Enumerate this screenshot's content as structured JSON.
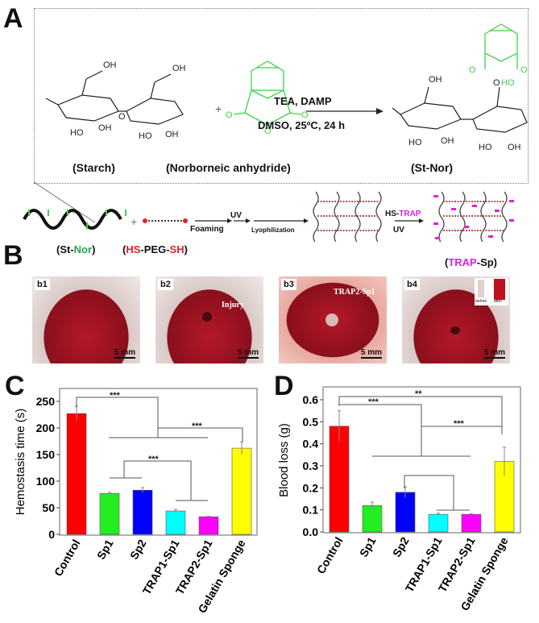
{
  "panels": {
    "A": "A",
    "B": "B",
    "C": "C",
    "D": "D"
  },
  "panel_a": {
    "reactants": [
      {
        "name": "(Starch)"
      },
      {
        "name": "(Norborneic anhydride)"
      }
    ],
    "plus": "+",
    "conditions_top": "TEA, DAMP",
    "conditions_bottom": "DMSO, 25ºC, 24 h",
    "product": "(St-Nor)",
    "colors": {
      "norbornene": "#3cd24a",
      "thiol": "#e8202a",
      "trap": "#e020e0"
    },
    "process": {
      "st_nor": {
        "open": "(St-",
        "accent": "Nor",
        "close": ")"
      },
      "peg": {
        "open": "(",
        "accent1": "HS",
        "mid": "-PEG-",
        "accent2": "SH",
        "close": ")"
      },
      "steps": [
        "Foaming",
        "UV",
        "Lyophilization"
      ],
      "trap_step_top": {
        "prefix": "HS-",
        "accent": "TRAP"
      },
      "trap_step_bottom": "UV",
      "final": {
        "open": "(",
        "accent": "TRAP",
        "close": "-Sp)"
      }
    }
  },
  "panel_b": {
    "photos": [
      {
        "tag": "b1",
        "scale": "5 mm"
      },
      {
        "tag": "b2",
        "scale": "5 mm",
        "note": "Injury"
      },
      {
        "tag": "b3",
        "scale": "5 mm",
        "note": "TRAP2-Sp1"
      },
      {
        "tag": "b4",
        "scale": "5 mm",
        "inset": [
          "before",
          "after"
        ]
      }
    ]
  },
  "chart_data": [
    {
      "id": "C",
      "type": "bar",
      "title": "",
      "xlabel": "",
      "ylabel": "Hemostasis time (s)",
      "categories": [
        "Control",
        "Sp1",
        "Sp2",
        "TRAP1-Sp1",
        "TRAP2-Sp1",
        "Gelatin Sponge"
      ],
      "values": [
        227,
        77,
        83,
        44,
        33,
        162
      ],
      "errors": [
        14,
        2,
        5,
        3,
        1,
        12
      ],
      "colors": [
        "#ff0000",
        "#22ee22",
        "#0000ff",
        "#00ffff",
        "#ff00ff",
        "#ffff00"
      ],
      "ylim": [
        0,
        270
      ],
      "yticks": [
        0,
        50,
        100,
        150,
        200,
        250
      ],
      "grid": false,
      "significance": [
        {
          "label": "***",
          "between": "Control vs Sp1..TRAP2-Sp1"
        },
        {
          "label": "***",
          "between": "Gelatin Sponge vs Sp1..TRAP2-Sp1"
        },
        {
          "label": "***",
          "between": "Sp1,Sp2 vs TRAP1-Sp1,TRAP2-Sp1"
        }
      ]
    },
    {
      "id": "D",
      "type": "bar",
      "title": "",
      "xlabel": "",
      "ylabel": "Blood loss (g)",
      "categories": [
        "Control",
        "Sp1",
        "Sp2",
        "TRAP1-Sp1",
        "TRAP2-Sp1",
        "Gelatin Sponge"
      ],
      "values": [
        0.48,
        0.12,
        0.18,
        0.08,
        0.08,
        0.32
      ],
      "errors": [
        0.07,
        0.015,
        0.025,
        0.005,
        0.003,
        0.065
      ],
      "colors": [
        "#ff0000",
        "#22ee22",
        "#0000ff",
        "#00ffff",
        "#ff00ff",
        "#ffff00"
      ],
      "ylim": [
        0,
        0.65
      ],
      "yticks": [
        "0.0",
        "0.1",
        "0.2",
        "0.3",
        "0.4",
        "0.5",
        "0.6"
      ],
      "grid": false,
      "significance": [
        {
          "label": "**",
          "between": "Control vs Gelatin Sponge"
        },
        {
          "label": "***",
          "between": "Control vs Sp1..TRAP2-Sp1"
        },
        {
          "label": "***",
          "between": "Gelatin Sponge vs Sp1..TRAP2-Sp1"
        },
        {
          "label": "",
          "between": "Sp2 vs TRAP1-Sp1,TRAP2-Sp1"
        }
      ]
    }
  ]
}
